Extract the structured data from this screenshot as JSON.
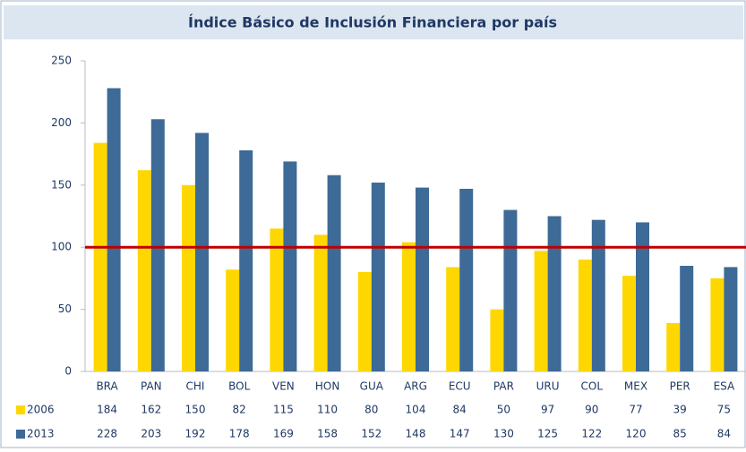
{
  "chart_data": {
    "type": "bar",
    "title": "Índice Básico de Inclusión Financiera por país",
    "categories": [
      "BRA",
      "PAN",
      "CHI",
      "BOL",
      "VEN",
      "HON",
      "GUA",
      "ARG",
      "ECU",
      "PAR",
      "URU",
      "COL",
      "MEX",
      "PER",
      "ESA"
    ],
    "series": [
      {
        "name": "2006",
        "color": "#ffd700",
        "values": [
          184,
          162,
          150,
          82,
          115,
          110,
          80,
          104,
          84,
          50,
          97,
          90,
          77,
          39,
          75
        ]
      },
      {
        "name": "2013",
        "color": "#3d6a96",
        "values": [
          228,
          203,
          192,
          178,
          169,
          158,
          152,
          148,
          147,
          130,
          125,
          122,
          120,
          85,
          84
        ]
      }
    ],
    "ylim": [
      0,
      250
    ],
    "yticks": [
      0,
      50,
      100,
      150,
      200,
      250
    ],
    "grid": false,
    "reference_line": {
      "value": 100,
      "color": "#c00000"
    }
  }
}
